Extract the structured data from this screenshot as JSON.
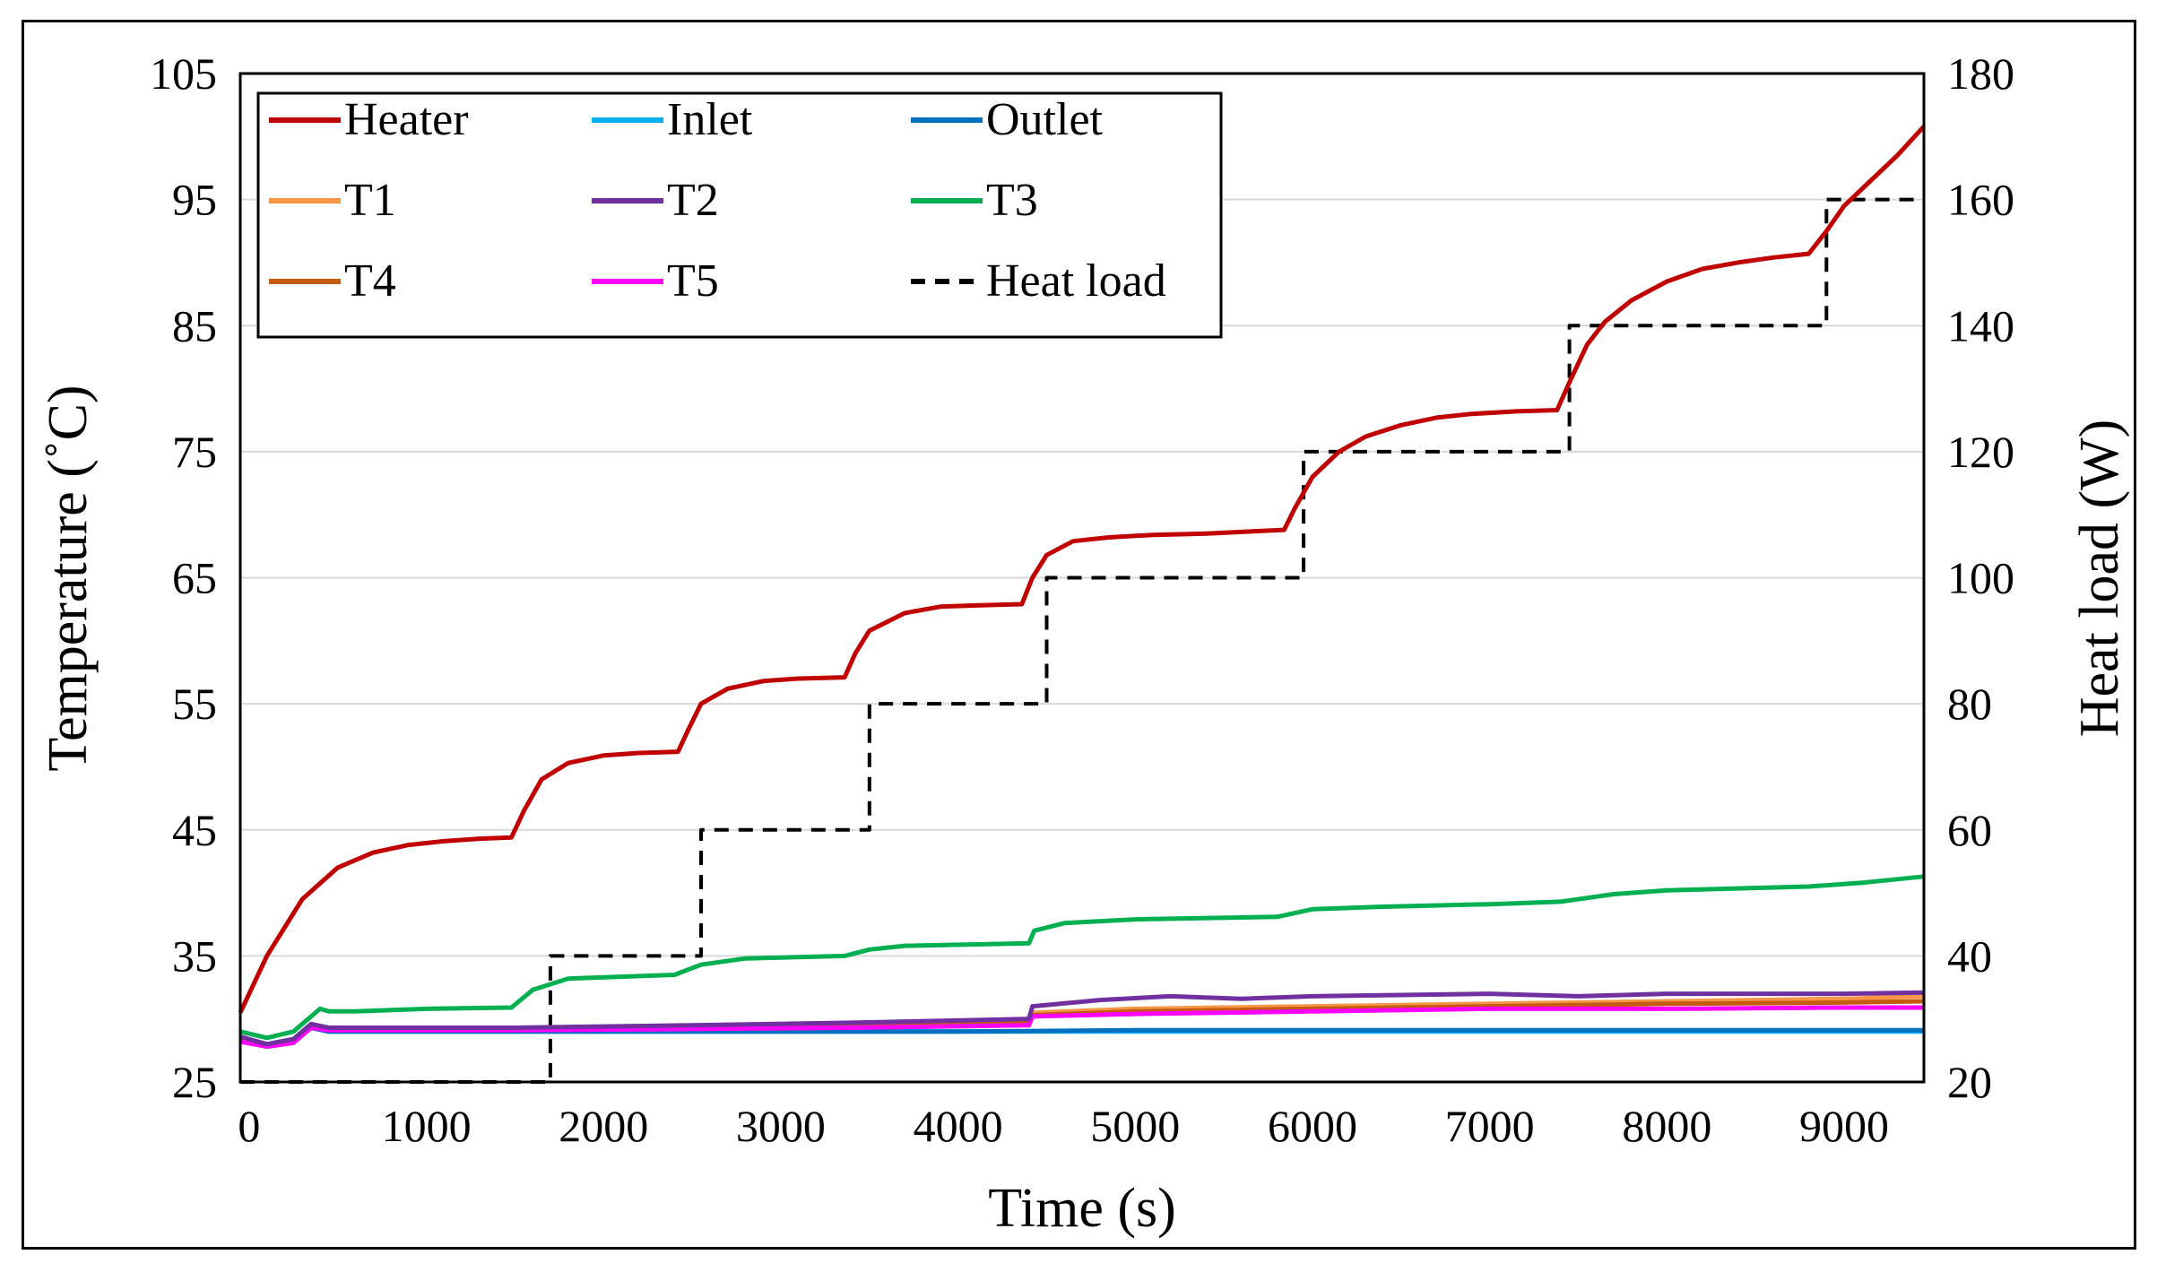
{
  "chart_data": {
    "type": "line",
    "title": "",
    "xlabel": "Time (s)",
    "ylabel": "Temperature (˚C)",
    "y2label": "Heat load (W)",
    "xlim": [
      -50,
      9450
    ],
    "ylim": [
      25,
      105
    ],
    "y2lim": [
      20,
      180
    ],
    "xticks": [
      0,
      1000,
      2000,
      3000,
      4000,
      5000,
      6000,
      7000,
      8000,
      9000
    ],
    "yticks": [
      25,
      35,
      45,
      55,
      65,
      75,
      85,
      95,
      105
    ],
    "y2ticks": [
      20,
      40,
      60,
      80,
      100,
      120,
      140,
      160,
      180
    ],
    "grid": "horizontal",
    "legend_position": "top-left",
    "series": [
      {
        "name": "Heater",
        "color": "#C00000",
        "style": "solid",
        "axis": "left",
        "points": [
          [
            -50,
            30.5
          ],
          [
            100,
            35
          ],
          [
            300,
            39.5
          ],
          [
            500,
            42
          ],
          [
            700,
            43.2
          ],
          [
            900,
            43.8
          ],
          [
            1100,
            44.1
          ],
          [
            1300,
            44.3
          ],
          [
            1480,
            44.4
          ],
          [
            1550,
            46.5
          ],
          [
            1650,
            49
          ],
          [
            1800,
            50.3
          ],
          [
            2000,
            50.9
          ],
          [
            2200,
            51.1
          ],
          [
            2420,
            51.2
          ],
          [
            2480,
            53
          ],
          [
            2550,
            55
          ],
          [
            2700,
            56.2
          ],
          [
            2900,
            56.8
          ],
          [
            3100,
            57
          ],
          [
            3360,
            57.1
          ],
          [
            3420,
            59
          ],
          [
            3500,
            60.8
          ],
          [
            3700,
            62.2
          ],
          [
            3900,
            62.7
          ],
          [
            4100,
            62.8
          ],
          [
            4360,
            62.9
          ],
          [
            4420,
            65
          ],
          [
            4500,
            66.8
          ],
          [
            4650,
            67.9
          ],
          [
            4850,
            68.2
          ],
          [
            5100,
            68.4
          ],
          [
            5400,
            68.5
          ],
          [
            5840,
            68.8
          ],
          [
            5900,
            70.5
          ],
          [
            6000,
            73
          ],
          [
            6150,
            75
          ],
          [
            6300,
            76.2
          ],
          [
            6500,
            77.1
          ],
          [
            6700,
            77.7
          ],
          [
            6900,
            78
          ],
          [
            7150,
            78.2
          ],
          [
            7380,
            78.3
          ],
          [
            7450,
            80.5
          ],
          [
            7550,
            83.5
          ],
          [
            7650,
            85.3
          ],
          [
            7800,
            87
          ],
          [
            8000,
            88.5
          ],
          [
            8200,
            89.5
          ],
          [
            8400,
            90
          ],
          [
            8600,
            90.4
          ],
          [
            8800,
            90.7
          ],
          [
            8900,
            92.5
          ],
          [
            9000,
            94.5
          ],
          [
            9150,
            96.5
          ],
          [
            9300,
            98.5
          ],
          [
            9450,
            100.8
          ]
        ]
      },
      {
        "name": "Inlet",
        "color": "#00B0F0",
        "style": "solid",
        "axis": "left",
        "points": [
          [
            -50,
            28.3
          ],
          [
            100,
            27.8
          ],
          [
            250,
            28.2
          ],
          [
            350,
            29.3
          ],
          [
            450,
            29
          ],
          [
            1000,
            29
          ],
          [
            2000,
            29
          ],
          [
            3000,
            29
          ],
          [
            4000,
            29
          ],
          [
            5000,
            29
          ],
          [
            6000,
            29
          ],
          [
            7000,
            29
          ],
          [
            8000,
            29
          ],
          [
            9000,
            29
          ],
          [
            9450,
            29
          ]
        ]
      },
      {
        "name": "Outlet",
        "color": "#0070C0",
        "style": "solid",
        "axis": "left",
        "points": [
          [
            -50,
            28.5
          ],
          [
            100,
            28
          ],
          [
            250,
            28.4
          ],
          [
            350,
            29.3
          ],
          [
            450,
            29
          ],
          [
            1000,
            29
          ],
          [
            2000,
            29
          ],
          [
            3000,
            29
          ],
          [
            4000,
            29
          ],
          [
            5000,
            29.1
          ],
          [
            6000,
            29.1
          ],
          [
            7000,
            29.1
          ],
          [
            8000,
            29.1
          ],
          [
            9000,
            29.1
          ],
          [
            9450,
            29.1
          ]
        ]
      },
      {
        "name": "T1",
        "color": "#F79646",
        "style": "solid",
        "axis": "left",
        "points": [
          [
            -50,
            28.5
          ],
          [
            100,
            27.9
          ],
          [
            250,
            28.3
          ],
          [
            350,
            29.5
          ],
          [
            450,
            29.2
          ],
          [
            1500,
            29.2
          ],
          [
            2500,
            29.4
          ],
          [
            3400,
            29.6
          ],
          [
            4400,
            29.8
          ],
          [
            4420,
            30.5
          ],
          [
            5000,
            30.8
          ],
          [
            6000,
            31
          ],
          [
            7000,
            31.2
          ],
          [
            8000,
            31.4
          ],
          [
            9000,
            31.6
          ],
          [
            9450,
            31.8
          ]
        ]
      },
      {
        "name": "T2",
        "color": "#7030A0",
        "style": "solid",
        "axis": "left",
        "points": [
          [
            -50,
            28.6
          ],
          [
            100,
            28
          ],
          [
            250,
            28.4
          ],
          [
            350,
            29.6
          ],
          [
            450,
            29.3
          ],
          [
            1500,
            29.3
          ],
          [
            2500,
            29.5
          ],
          [
            3400,
            29.7
          ],
          [
            4400,
            30
          ],
          [
            4420,
            31
          ],
          [
            4800,
            31.5
          ],
          [
            5200,
            31.8
          ],
          [
            5600,
            31.6
          ],
          [
            6000,
            31.8
          ],
          [
            6500,
            31.9
          ],
          [
            7000,
            32
          ],
          [
            7500,
            31.8
          ],
          [
            8000,
            32
          ],
          [
            8500,
            32
          ],
          [
            9000,
            32
          ],
          [
            9450,
            32.1
          ]
        ]
      },
      {
        "name": "T3",
        "color": "#00B050",
        "style": "solid",
        "axis": "left",
        "points": [
          [
            -50,
            29
          ],
          [
            100,
            28.5
          ],
          [
            250,
            29
          ],
          [
            350,
            30.2
          ],
          [
            400,
            30.8
          ],
          [
            450,
            30.6
          ],
          [
            600,
            30.6
          ],
          [
            1000,
            30.8
          ],
          [
            1480,
            30.9
          ],
          [
            1600,
            32.3
          ],
          [
            1800,
            33.2
          ],
          [
            2400,
            33.5
          ],
          [
            2550,
            34.3
          ],
          [
            2800,
            34.8
          ],
          [
            3360,
            35
          ],
          [
            3500,
            35.5
          ],
          [
            3700,
            35.8
          ],
          [
            4400,
            36
          ],
          [
            4430,
            37
          ],
          [
            4600,
            37.6
          ],
          [
            5000,
            37.9
          ],
          [
            5800,
            38.1
          ],
          [
            6000,
            38.7
          ],
          [
            6400,
            38.9
          ],
          [
            7000,
            39.1
          ],
          [
            7400,
            39.3
          ],
          [
            7700,
            39.9
          ],
          [
            8000,
            40.2
          ],
          [
            8800,
            40.5
          ],
          [
            9100,
            40.8
          ],
          [
            9450,
            41.3
          ]
        ]
      },
      {
        "name": "T4",
        "color": "#C55A11",
        "style": "solid",
        "axis": "left",
        "points": [
          [
            -50,
            28.4
          ],
          [
            100,
            27.8
          ],
          [
            250,
            28.2
          ],
          [
            350,
            29.4
          ],
          [
            450,
            29.1
          ],
          [
            1500,
            29.2
          ],
          [
            2500,
            29.3
          ],
          [
            3400,
            29.5
          ],
          [
            4400,
            29.7
          ],
          [
            4420,
            30.3
          ],
          [
            5000,
            30.6
          ],
          [
            6000,
            30.8
          ],
          [
            7000,
            31
          ],
          [
            8000,
            31.2
          ],
          [
            9000,
            31.3
          ],
          [
            9450,
            31.4
          ]
        ]
      },
      {
        "name": "T5",
        "color": "#FF00FF",
        "style": "solid",
        "axis": "left",
        "points": [
          [
            -50,
            28.2
          ],
          [
            100,
            27.8
          ],
          [
            250,
            28.1
          ],
          [
            350,
            29.3
          ],
          [
            450,
            29.1
          ],
          [
            1500,
            29.1
          ],
          [
            2500,
            29.2
          ],
          [
            3400,
            29.3
          ],
          [
            4400,
            29.5
          ],
          [
            4420,
            30.2
          ],
          [
            5000,
            30.4
          ],
          [
            6000,
            30.6
          ],
          [
            7000,
            30.8
          ],
          [
            8000,
            30.8
          ],
          [
            9000,
            30.9
          ],
          [
            9450,
            30.9
          ]
        ]
      },
      {
        "name": "Heat load",
        "color": "#000000",
        "style": "dashed",
        "axis": "right",
        "points": [
          [
            -50,
            20
          ],
          [
            1700,
            20
          ],
          [
            1700,
            40
          ],
          [
            2550,
            40
          ],
          [
            2550,
            60
          ],
          [
            3500,
            60
          ],
          [
            3500,
            80
          ],
          [
            4500,
            80
          ],
          [
            4500,
            100
          ],
          [
            5950,
            100
          ],
          [
            5950,
            120
          ],
          [
            7450,
            120
          ],
          [
            7450,
            140
          ],
          [
            8900,
            140
          ],
          [
            8900,
            160
          ],
          [
            9450,
            160
          ]
        ]
      }
    ]
  }
}
